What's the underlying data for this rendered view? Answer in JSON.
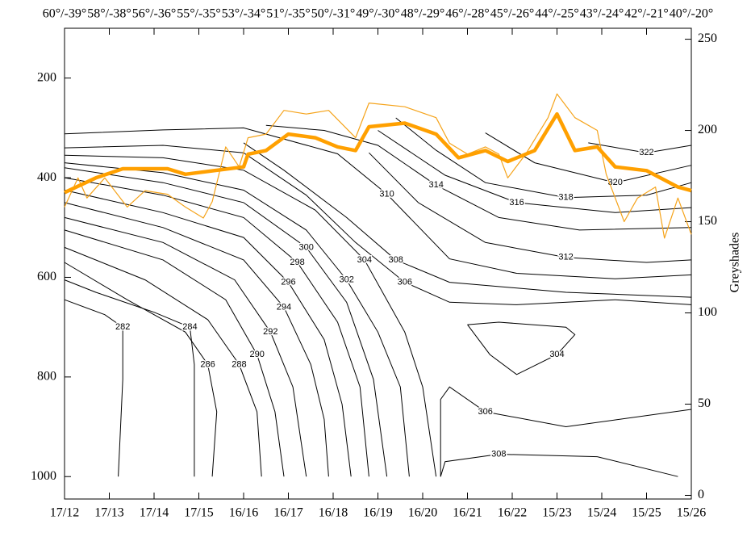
{
  "chart_data": {
    "type": "contour",
    "categories": [
      "17/12",
      "17/13",
      "17/14",
      "17/15",
      "16/16",
      "16/17",
      "16/18",
      "16/19",
      "16/20",
      "16/21",
      "16/22",
      "15/23",
      "15/24",
      "15/25",
      "15/26"
    ],
    "top_labels": [
      "60°/-39°",
      "58°/-38°",
      "56°/-36°",
      "55°/-35°",
      "53°/-34°",
      "51°/-35°",
      "50°/-31°",
      "49°/-30°",
      "48°/-29°",
      "46°/-28°",
      "45°/-26°",
      "44°/-25°",
      "43°/-24°",
      "42°/-21°",
      "40°/-20°"
    ],
    "ylim": [
      100,
      1045
    ],
    "y_inverted": true,
    "yticks": [
      200,
      400,
      600,
      800,
      1000
    ],
    "y2_label": "Greyshades",
    "y2lim": [
      -2,
      256
    ],
    "y2ticks": [
      0,
      50,
      100,
      150,
      200,
      250
    ],
    "contour_color": "#000000",
    "contours": [
      {
        "level": 322,
        "x": [
          11.7,
          13,
          14
        ],
        "y": [
          330,
          350,
          335
        ]
      },
      {
        "level": 320,
        "x": [
          9.4,
          10.5,
          12.3,
          14
        ],
        "y": [
          310,
          370,
          410,
          375
        ]
      },
      {
        "level": 318,
        "x": [
          7.4,
          8.3,
          9.4,
          11.2,
          13,
          14
        ],
        "y": [
          280,
          345,
          410,
          440,
          435,
          410
        ]
      },
      {
        "level": 316,
        "x": [
          7,
          8.5,
          10.1,
          12.3,
          14
        ],
        "y": [
          305,
          395,
          450,
          470,
          460
        ]
      },
      {
        "level": 314,
        "x": [
          4.5,
          5.8,
          7,
          8.3,
          9.7,
          11.5,
          14
        ],
        "y": [
          295,
          305,
          335,
          415,
          480,
          505,
          500
        ]
      },
      {
        "level": 312,
        "x": [
          6.8,
          7.9,
          9.4,
          11.2,
          13,
          14
        ],
        "y": [
          350,
          450,
          530,
          560,
          570,
          565
        ]
      },
      {
        "level": 310,
        "x": [
          0,
          2.2,
          4,
          6.1,
          7.2,
          8.6,
          10.1,
          12.3,
          14
        ],
        "y": [
          312,
          304,
          300,
          352,
          433,
          563,
          592,
          603,
          595
        ]
      },
      {
        "level": 308,
        "x": [
          4,
          4.9,
          6.3,
          7.4,
          8.6,
          11.2,
          14
        ],
        "y": [
          330,
          385,
          480,
          565,
          610,
          630,
          640
        ]
      },
      {
        "level": 306,
        "x": [
          0,
          2.2,
          4,
          5.4,
          6.5,
          7.6,
          8.6,
          10.1,
          12.3,
          14
        ],
        "y": [
          340,
          335,
          350,
          435,
          530,
          610,
          650,
          655,
          645,
          655
        ]
      },
      {
        "level": 304,
        "x": [
          0,
          2.2,
          4,
          5.6,
          6.7,
          7.6,
          8,
          8.3
        ],
        "y": [
          355,
          360,
          385,
          465,
          565,
          710,
          820,
          1000
        ]
      },
      {
        "level": 302,
        "x": [
          0,
          2.2,
          4,
          5.4,
          6.3,
          7,
          7.5,
          7.7
        ],
        "y": [
          370,
          390,
          425,
          505,
          605,
          710,
          820,
          1000
        ]
      },
      {
        "level": 300,
        "x": [
          0,
          2.2,
          4,
          5.4,
          6.3,
          6.9,
          7.2
        ],
        "y": [
          380,
          410,
          450,
          540,
          650,
          805,
          1000
        ]
      },
      {
        "level": 298,
        "x": [
          0,
          2.2,
          4,
          5.2,
          6.1,
          6.6,
          6.8
        ],
        "y": [
          400,
          435,
          480,
          570,
          690,
          820,
          1000
        ]
      },
      {
        "level": 296,
        "x": [
          0,
          2.2,
          4,
          5,
          5.8,
          6.2,
          6.4
        ],
        "y": [
          425,
          470,
          520,
          610,
          725,
          855,
          1000
        ]
      },
      {
        "level": 294,
        "x": [
          0,
          2.2,
          4,
          4.9,
          5.5,
          5.8,
          5.9
        ],
        "y": [
          450,
          500,
          565,
          660,
          775,
          885,
          1000
        ]
      },
      {
        "level": 292,
        "x": [
          0,
          2.2,
          3.8,
          4.6,
          5.1,
          5.4
        ],
        "y": [
          480,
          530,
          605,
          710,
          820,
          1000
        ]
      },
      {
        "level": 290,
        "x": [
          0,
          2.2,
          3.6,
          4.3,
          4.7,
          4.9
        ],
        "y": [
          505,
          565,
          645,
          755,
          870,
          1000
        ]
      },
      {
        "level": 288,
        "x": [
          0,
          1.8,
          3.2,
          3.9,
          4.3,
          4.4
        ],
        "y": [
          540,
          605,
          685,
          775,
          870,
          1000
        ]
      },
      {
        "level": 286,
        "x": [
          0,
          1.4,
          2.7,
          3.2,
          3.4,
          3.3
        ],
        "y": [
          570,
          645,
          710,
          775,
          870,
          1000
        ]
      },
      {
        "level": 284,
        "x": [
          0,
          0.7,
          2,
          2.8,
          2.9,
          2.9
        ],
        "y": [
          605,
          630,
          670,
          700,
          775,
          1000
        ]
      },
      {
        "level": 282,
        "x": [
          0,
          0.9,
          1.3,
          1.3,
          1.2
        ],
        "y": [
          645,
          675,
          700,
          805,
          1000
        ]
      },
      {
        "level": 304,
        "x": [
          9,
          9.7,
          11.2,
          11.4,
          11,
          10.1,
          9.5,
          9
        ],
        "y": [
          695,
          690,
          700,
          715,
          755,
          795,
          755,
          695
        ]
      },
      {
        "level": 306,
        "x": [
          8.4,
          8.4,
          8.6,
          9.4,
          11.2,
          14
        ],
        "y": [
          1000,
          845,
          820,
          870,
          900,
          865
        ]
      },
      {
        "level": 308,
        "x": [
          8.4,
          8.5,
          9.7,
          11.9,
          13.7
        ],
        "y": [
          1000,
          970,
          955,
          960,
          1000
        ]
      }
    ],
    "series": [
      {
        "color": "#f5a31a",
        "width": "thin",
        "axis": "y2",
        "x": [
          0,
          0.3,
          0.5,
          0.9,
          1.4,
          1.8,
          2.3,
          2.7,
          3.1,
          3.3,
          3.6,
          3.9,
          4.1,
          4.5,
          4.9,
          5.4,
          5.9,
          6.5,
          6.8,
          7.6,
          8.3,
          8.6,
          9,
          9.4,
          9.7,
          9.9,
          10.3,
          10.8,
          11,
          11.4,
          11.9,
          12.1,
          12.5,
          12.8,
          13.2,
          13.4,
          13.7,
          14
        ],
        "values": [
          158,
          174,
          163,
          174,
          158,
          167,
          165,
          158,
          152,
          161,
          191,
          180,
          196,
          198,
          211,
          209,
          211,
          196,
          215,
          213,
          207,
          193,
          187,
          191,
          187,
          174,
          187,
          207,
          220,
          207,
          200,
          176,
          150,
          163,
          169,
          141,
          163,
          143
        ]
      },
      {
        "color": "#ffa000",
        "width": "thick",
        "axis": "y2",
        "x": [
          0,
          0.7,
          1.3,
          2.3,
          2.7,
          4,
          4.1,
          4.5,
          5,
          5.6,
          6.1,
          6.5,
          6.8,
          7.6,
          8.3,
          8.8,
          9.4,
          9.9,
          10.5,
          11,
          11.4,
          11.9,
          12.3,
          13,
          13.7,
          14
        ],
        "values": [
          166,
          174,
          179,
          179,
          176,
          180,
          187,
          189,
          198,
          196,
          191,
          189,
          202,
          204,
          198,
          185,
          189,
          183,
          189,
          209,
          189,
          191,
          180,
          178,
          169,
          167
        ]
      }
    ]
  }
}
